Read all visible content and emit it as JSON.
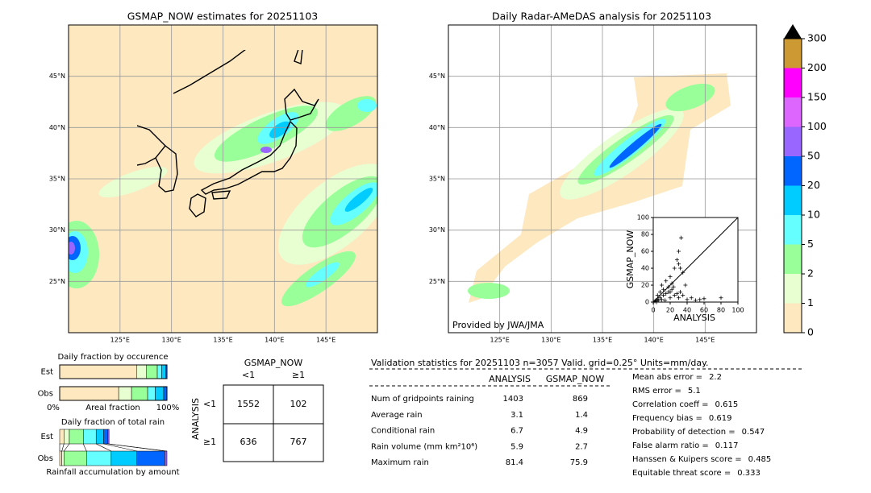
{
  "maps": [
    {
      "title": "GSMAP_NOW estimates for 20251103",
      "lonlim": [
        120,
        150
      ],
      "latlim": [
        20,
        50
      ],
      "lonticks": [
        {
          "value": 125,
          "label": "125°E"
        },
        {
          "value": 130,
          "label": "130°E"
        },
        {
          "value": 135,
          "label": "135°E"
        },
        {
          "value": 140,
          "label": "140°E"
        },
        {
          "value": 145,
          "label": "145°E"
        }
      ],
      "latticks": [
        {
          "value": 25,
          "label": "25°N"
        },
        {
          "value": 30,
          "label": "30°N"
        },
        {
          "value": 35,
          "label": "35°N"
        },
        {
          "value": 40,
          "label": "40°N"
        },
        {
          "value": 45,
          "label": "45°N"
        }
      ]
    },
    {
      "title": "Daily Radar-AMeDAS analysis for 20251103",
      "lonlim": [
        120,
        150
      ],
      "latlim": [
        20,
        50
      ],
      "lonticks": [
        {
          "value": 125,
          "label": "125°E"
        },
        {
          "value": 130,
          "label": "130°E"
        },
        {
          "value": 135,
          "label": "135°E"
        },
        {
          "value": 140,
          "label": "140°E"
        },
        {
          "value": 145,
          "label": "145°E"
        }
      ],
      "latticks": [
        {
          "value": 25,
          "label": "25°N"
        },
        {
          "value": 30,
          "label": "30°N"
        },
        {
          "value": 35,
          "label": "35°N"
        },
        {
          "value": 40,
          "label": "40°N"
        },
        {
          "value": 45,
          "label": "45°N"
        }
      ],
      "credit": "Provided by JWA/JMA"
    }
  ],
  "colorbar": {
    "ticks": [
      0,
      1,
      2,
      5,
      10,
      20,
      50,
      100,
      150,
      200,
      300
    ],
    "colors": [
      "#fde8c0",
      "#e8ffd2",
      "#99ff99",
      "#66ffff",
      "#00ccff",
      "#0066ff",
      "#9966ff",
      "#dd66ff",
      "#ff00ff",
      "#cc9933"
    ],
    "over_color": "#000000"
  },
  "scatter": {
    "xlabel": "ANALYSIS",
    "ylabel": "GSMAP_NOW",
    "xlim": [
      0,
      100
    ],
    "ylim": [
      0,
      100
    ],
    "xticks": [
      0,
      20,
      40,
      60,
      80,
      100
    ],
    "yticks": [
      0,
      20,
      40,
      60,
      80,
      100
    ],
    "x": [
      2,
      3,
      5,
      5,
      8,
      10,
      12,
      15,
      18,
      20,
      22,
      25,
      28,
      30,
      32,
      35,
      40,
      45,
      50,
      55,
      60,
      80,
      10,
      15,
      20,
      22,
      25,
      30,
      28,
      30,
      32,
      35,
      18,
      12,
      8,
      6,
      4,
      14,
      24,
      33,
      38,
      20
    ],
    "y": [
      1,
      2,
      3,
      8,
      5,
      3,
      8,
      10,
      12,
      5,
      15,
      8,
      10,
      5,
      12,
      8,
      3,
      5,
      2,
      3,
      4,
      5,
      20,
      25,
      30,
      22,
      40,
      45,
      50,
      60,
      40,
      35,
      18,
      15,
      12,
      2,
      0,
      2,
      18,
      76,
      20,
      12
    ]
  },
  "occurrence": {
    "title": "Daily fraction by occurence",
    "xlabel": "Areal fraction",
    "left_label": "0%",
    "right_label": "100%",
    "rows": [
      {
        "name": "Est",
        "values": [
          72,
          9,
          10,
          4,
          4,
          1
        ]
      },
      {
        "name": "Obs",
        "values": [
          55,
          12,
          15,
          7,
          8,
          3
        ]
      }
    ]
  },
  "total_rain": {
    "title": "Daily fraction of total rain",
    "xlabel": "Rainfall accumulation by amount",
    "rows": [
      {
        "name": "Est",
        "values": [
          4,
          5,
          13,
          12,
          7,
          4,
          1
        ]
      },
      {
        "name": "Obs",
        "values": [
          2,
          2,
          21,
          23,
          24,
          26,
          2
        ]
      }
    ]
  },
  "contingency": {
    "col_title": "GSMAP_NOW",
    "row_title": "ANALYSIS",
    "col_labels": [
      "<1",
      "≥1"
    ],
    "row_labels": [
      "<1",
      "≥1"
    ],
    "cells": [
      [
        1552,
        102
      ],
      [
        636,
        767
      ]
    ]
  },
  "stats": {
    "title": "Validation statistics for 20251103  n=3057 Valid. grid=0.25° Units=mm/day.",
    "columns": [
      "ANALYSIS",
      "GSMAP_NOW"
    ],
    "rows": [
      {
        "label": "Num of gridpoints raining",
        "values": [
          1403,
          869
        ]
      },
      {
        "label": "Average rain",
        "values": [
          3.1,
          1.4
        ]
      },
      {
        "label": "Conditional rain",
        "values": [
          6.7,
          4.9
        ]
      },
      {
        "label": "Rain volume (mm km²10⁶)",
        "values": [
          5.9,
          2.7
        ]
      },
      {
        "label": "Maximum rain",
        "values": [
          81.4,
          75.9
        ]
      }
    ],
    "scores": [
      {
        "label": "Mean abs error =",
        "value": 2.2
      },
      {
        "label": "RMS error =",
        "value": 5.1
      },
      {
        "label": "Correlation coeff =",
        "value": 0.615
      },
      {
        "label": "Frequency bias =",
        "value": 0.619
      },
      {
        "label": "Probability of detection =",
        "value": 0.547
      },
      {
        "label": "False alarm ratio =",
        "value": 0.117
      },
      {
        "label": "Hanssen & Kuipers score =",
        "value": 0.485
      },
      {
        "label": "Equitable threat score =",
        "value": 0.333
      }
    ]
  }
}
